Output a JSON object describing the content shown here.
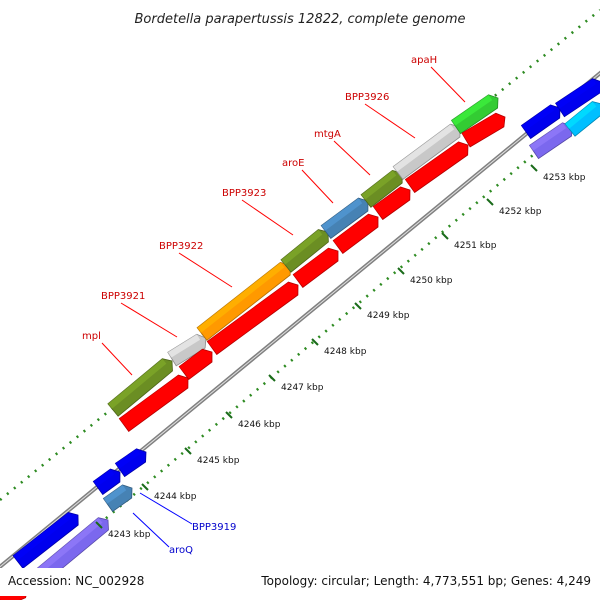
{
  "title": "Bordetella parapertussis 12822, complete genome",
  "footer": {
    "accession": "Accession: NC_002928",
    "summary": "Topology: circular; Length: 4,773,551 bp; Genes: 4,249"
  },
  "ticks": [
    "4243 kbp",
    "4244 kbp",
    "4245 kbp",
    "4246 kbp",
    "4247 kbp",
    "4248 kbp",
    "4249 kbp",
    "4250 kbp",
    "4251 kbp",
    "4252 kbp",
    "4253 kbp"
  ],
  "forward_labels": [
    "mpl",
    "BPP3921",
    "BPP3922",
    "BPP3923",
    "aroE",
    "mtgA",
    "BPP3926",
    "apaH"
  ],
  "reverse_labels": [
    "BPP3919",
    "aroQ"
  ],
  "colors": {
    "forward_label": "#cc0000",
    "reverse_label": "#0000cc",
    "red_gene": "#ff0000",
    "blue_gene": "#0000ee",
    "olive_gene": "#6b8e23",
    "orange_gene": "#ff9900",
    "gray_gene": "#c8c8c8",
    "green_gene": "#33cc33",
    "steel_gene": "#4682b4",
    "slate_gene": "#7b68ee",
    "cyan_gene": "#00bfff",
    "backbone": "#808080",
    "tick_dots": "#228b22"
  }
}
